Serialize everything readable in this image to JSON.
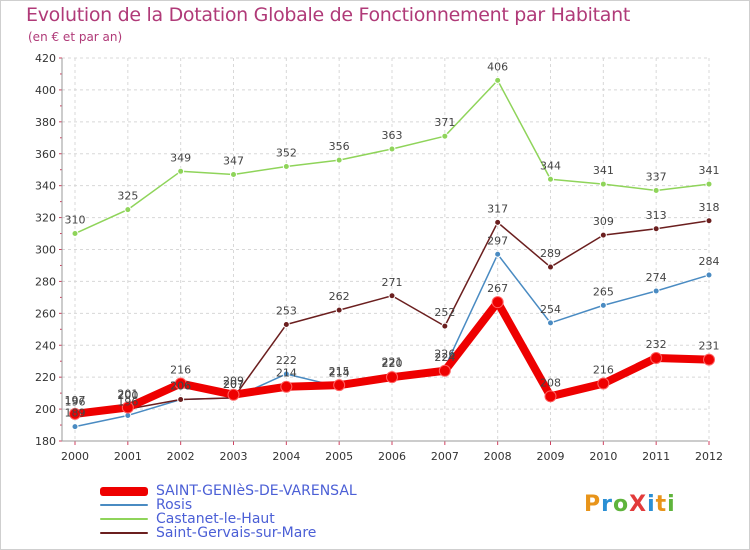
{
  "title": "Evolution de la Dotation Globale de Fonctionnement par Habitant",
  "subtitle": "(en € et par an)",
  "logo": {
    "text": "ProXiti",
    "letters": [
      {
        "ch": "P",
        "color": "#e8941a"
      },
      {
        "ch": "r",
        "color": "#2a8fd4"
      },
      {
        "ch": "o",
        "color": "#5fb43c"
      },
      {
        "ch": "X",
        "color": "#e23b3b"
      },
      {
        "ch": "i",
        "color": "#2a8fd4"
      },
      {
        "ch": "t",
        "color": "#e8941a"
      },
      {
        "ch": "i",
        "color": "#5fb43c"
      }
    ]
  },
  "chart_data": {
    "type": "line",
    "title": "Evolution de la Dotation Globale de Fonctionnement par Habitant",
    "subtitle": "(en € et par an)",
    "xlabel": "",
    "ylabel": "",
    "x": [
      "2000",
      "2001",
      "2002",
      "2003",
      "2004",
      "2005",
      "2006",
      "2007",
      "2008",
      "2009",
      "2010",
      "2011",
      "2012"
    ],
    "ylim": [
      180,
      420
    ],
    "yticks": [
      180,
      200,
      220,
      240,
      260,
      280,
      300,
      320,
      340,
      360,
      380,
      400,
      420
    ],
    "grid": true,
    "legend_position": "bottom-left",
    "series": [
      {
        "name": "SAINT-GENIèS-DE-VARENSAL",
        "color": "#ee0000",
        "width": 8,
        "values": [
          197,
          201,
          216,
          209,
          214,
          215,
          220,
          224,
          267,
          208,
          216,
          232,
          231
        ]
      },
      {
        "name": "Rosis",
        "color": "#4a8bc2",
        "width": 1.5,
        "values": [
          189,
          196,
          206,
          207,
          222,
          214,
          221,
          226,
          297,
          254,
          265,
          274,
          284
        ]
      },
      {
        "name": "Castanet-le-Haut",
        "color": "#8fd45a",
        "width": 1.5,
        "values": [
          310,
          325,
          349,
          347,
          352,
          356,
          363,
          371,
          406,
          344,
          341,
          337,
          341
        ]
      },
      {
        "name": "Saint-Gervais-sur-Mare",
        "color": "#6b1f1f",
        "width": 1.5,
        "values": [
          196,
          200,
          206,
          207,
          253,
          262,
          271,
          252,
          317,
          289,
          309,
          313,
          318
        ]
      }
    ]
  }
}
